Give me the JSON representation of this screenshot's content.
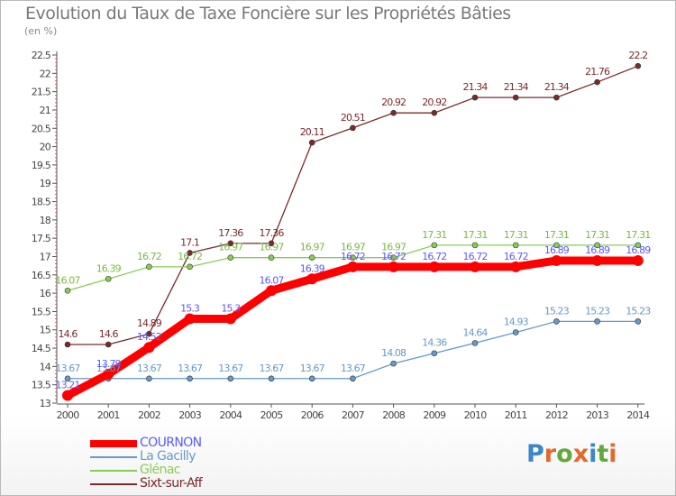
{
  "page": {
    "title": "Evolution du Taux de Taxe Foncière sur les Propriétés Bâties",
    "subtitle": "(en %)",
    "logo": {
      "letters": [
        "P",
        "r",
        "o",
        "x",
        "i",
        "t",
        "i"
      ],
      "colors": [
        "#3a88c8",
        "#e3682a",
        "#62a83a",
        "#e3682a",
        "#3a88c8",
        "#62a83a",
        "#e3682a"
      ]
    }
  },
  "chart_data": {
    "type": "line",
    "title": "Evolution du Taux de Taxe Foncière sur les Propriétés Bâties",
    "ylabel": "(en %)",
    "xlabel": "",
    "x": [
      "2000",
      "2001",
      "2002",
      "2003",
      "2004",
      "2005",
      "2006",
      "2007",
      "2008",
      "2009",
      "2010",
      "2011",
      "2012",
      "2013",
      "2014"
    ],
    "ylim": [
      13,
      22.5
    ],
    "ytick_step": 0.5,
    "yticks": [
      "13",
      "13.5",
      "14",
      "14.5",
      "15",
      "15.5",
      "16",
      "16.5",
      "17",
      "17.5",
      "18",
      "18.5",
      "19",
      "19.5",
      "20",
      "20.5",
      "21",
      "21.5",
      "22",
      "22.5"
    ],
    "grid": false,
    "legend_position": "bottom-left",
    "series": [
      {
        "name": "COURNON",
        "color": "#ff0000",
        "label_color": "#5a5aff",
        "emphasis": true,
        "values": [
          13.21,
          13.79,
          14.52,
          15.3,
          15.3,
          16.07,
          16.39,
          16.72,
          16.72,
          16.72,
          16.72,
          16.72,
          16.89,
          16.89,
          16.89
        ],
        "labels": [
          "13.21",
          "13.79",
          "14.52",
          "15.3",
          "15.3",
          "16.07",
          "16.39",
          "16.72",
          "16.72",
          "16.72",
          "16.72",
          "16.72",
          "16.89",
          "16.89",
          "16.89"
        ]
      },
      {
        "name": "La Gacilly",
        "color": "#6699cc",
        "label_color": "#6699cc",
        "emphasis": false,
        "values": [
          13.67,
          13.67,
          13.67,
          13.67,
          13.67,
          13.67,
          13.67,
          13.67,
          14.08,
          14.36,
          14.64,
          14.93,
          15.23,
          15.23,
          15.23
        ],
        "labels": [
          "13.67",
          "13.67",
          "13.67",
          "13.67",
          "13.67",
          "13.67",
          "13.67",
          "13.67",
          "14.08",
          "14.36",
          "14.64",
          "14.93",
          "15.23",
          "15.23",
          "15.23"
        ]
      },
      {
        "name": "Glénac",
        "color": "#88cc55",
        "label_color": "#77bb44",
        "emphasis": false,
        "values": [
          16.07,
          16.39,
          16.72,
          16.72,
          16.97,
          16.97,
          16.97,
          16.97,
          16.97,
          17.31,
          17.31,
          17.31,
          17.31,
          17.31,
          17.31
        ],
        "labels": [
          "16.07",
          "16.39",
          "16.72",
          "16.72",
          "16.97",
          "16.97",
          "16.97",
          "16.97",
          "16.97",
          "17.31",
          "17.31",
          "17.31",
          "17.31",
          "17.31",
          "17.31"
        ]
      },
      {
        "name": "Sixt-sur-Aff",
        "color": "#7a2a2a",
        "label_color": "#7a2a2a",
        "emphasis": false,
        "values": [
          14.6,
          14.6,
          14.89,
          17.1,
          17.36,
          17.36,
          20.11,
          20.51,
          20.92,
          20.92,
          21.34,
          21.34,
          21.34,
          21.76,
          22.2
        ],
        "labels": [
          "14.6",
          "14.6",
          "14.89",
          "17.1",
          "17.36",
          "17.36",
          "20.11",
          "20.51",
          "20.92",
          "20.92",
          "21.34",
          "21.34",
          "21.34",
          "21.76",
          "22.2"
        ]
      }
    ]
  }
}
